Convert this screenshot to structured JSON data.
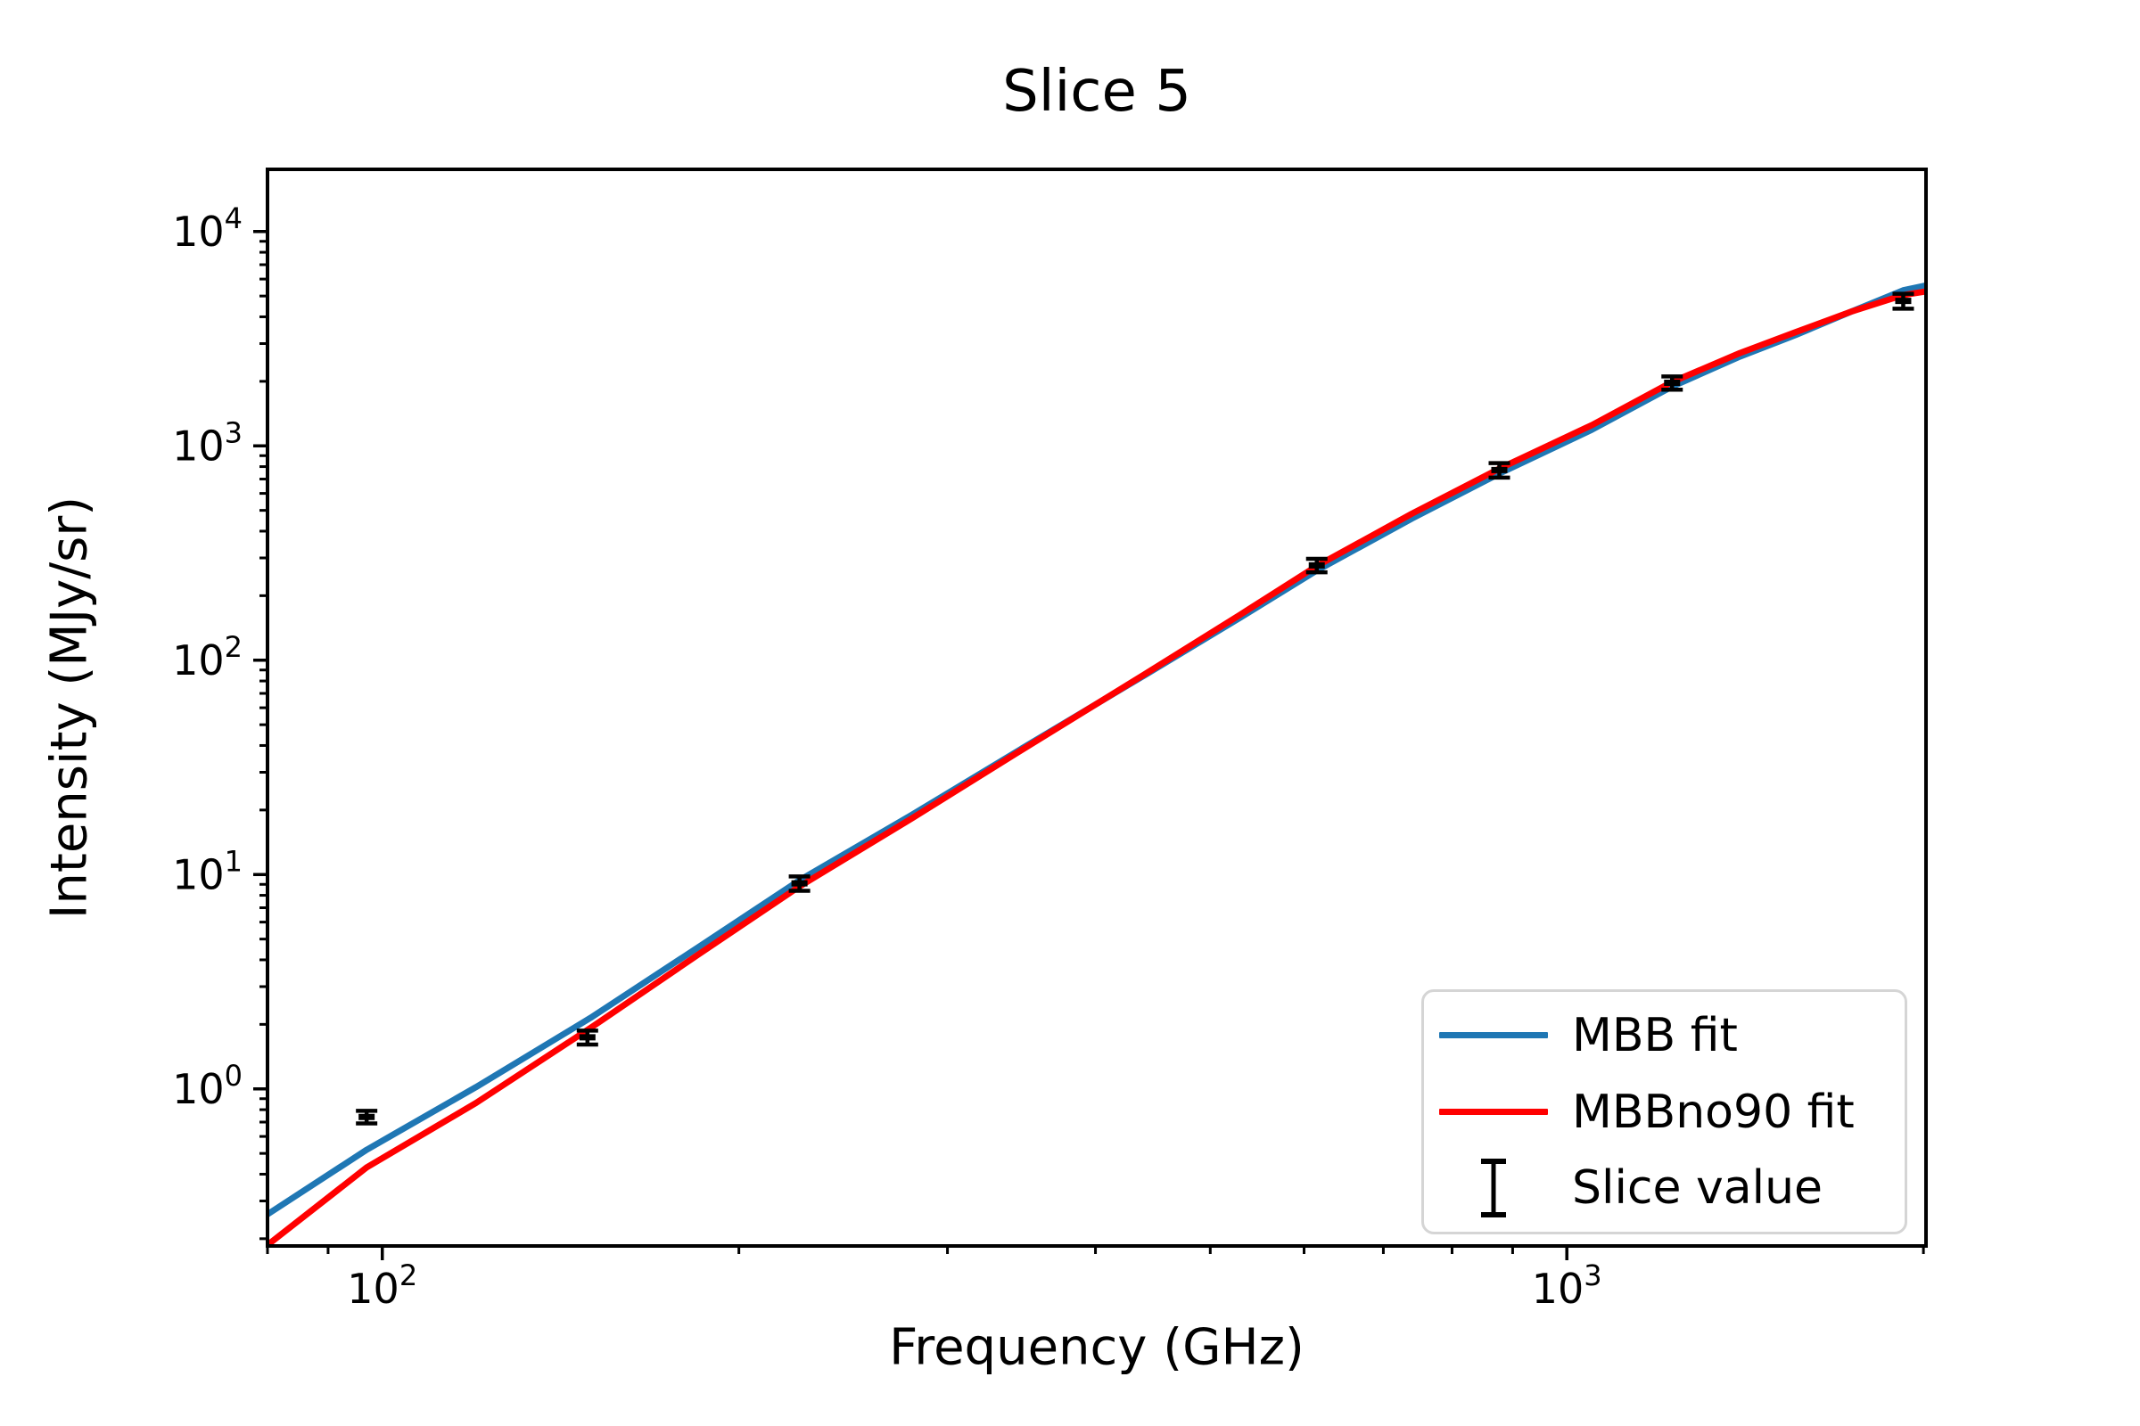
{
  "title": "Slice 5",
  "chart_data": {
    "type": "line",
    "title": "Slice 5",
    "xlabel": "Frequency (GHz)",
    "ylabel": "Intensity (MJy/sr)",
    "x_scale": "log",
    "y_scale": "log",
    "xlim": [
      80,
      2010
    ],
    "ylim": [
      0.185,
      19500
    ],
    "grid": false,
    "x_major_ticks": [
      {
        "value": 100,
        "exp": 2
      },
      {
        "value": 1000,
        "exp": 3
      }
    ],
    "y_major_ticks": [
      {
        "value": 1,
        "exp": 0
      },
      {
        "value": 10,
        "exp": 1
      },
      {
        "value": 100,
        "exp": 2
      },
      {
        "value": 1000,
        "exp": 3
      },
      {
        "value": 10000,
        "exp": 4
      }
    ],
    "axis_color": "#000000",
    "legend": {
      "position": "lower right"
    },
    "series": [
      {
        "name": "MBB fit",
        "type": "line",
        "color": "#1f77b4",
        "points": [
          [
            80,
            0.26
          ],
          [
            97,
            0.52
          ],
          [
            120,
            1.02
          ],
          [
            150,
            2.15
          ],
          [
            185,
            4.6
          ],
          [
            225,
            9.4
          ],
          [
            280,
            19
          ],
          [
            350,
            40
          ],
          [
            440,
            85
          ],
          [
            530,
            158
          ],
          [
            615,
            262
          ],
          [
            740,
            458
          ],
          [
            877,
            742
          ],
          [
            1050,
            1190
          ],
          [
            1227,
            1890
          ],
          [
            1400,
            2610
          ],
          [
            1560,
            3290
          ],
          [
            1740,
            4240
          ],
          [
            1923,
            5320
          ],
          [
            2010,
            5600
          ]
        ]
      },
      {
        "name": "MBBno90 fit",
        "type": "line",
        "color": "#ff0000",
        "points": [
          [
            80,
            0.187
          ],
          [
            97,
            0.43
          ],
          [
            120,
            0.86
          ],
          [
            150,
            1.93
          ],
          [
            185,
            4.25
          ],
          [
            225,
            8.8
          ],
          [
            280,
            18.3
          ],
          [
            350,
            39.4
          ],
          [
            440,
            85.9
          ],
          [
            530,
            163
          ],
          [
            615,
            275
          ],
          [
            740,
            483
          ],
          [
            877,
            783
          ],
          [
            1050,
            1250
          ],
          [
            1227,
            1985
          ],
          [
            1400,
            2710
          ],
          [
            1560,
            3390
          ],
          [
            1740,
            4240
          ],
          [
            1923,
            5050
          ],
          [
            2010,
            5260
          ]
        ]
      },
      {
        "name": "Slice value",
        "type": "errorbar",
        "color": "#000000",
        "x": [
          97,
          149,
          225,
          615,
          877,
          1227,
          1923
        ],
        "y": [
          0.74,
          1.74,
          9.1,
          277,
          771,
          1968,
          4742
        ],
        "yerr": [
          0.05,
          0.13,
          0.7,
          20,
          60,
          140,
          380
        ]
      }
    ]
  }
}
